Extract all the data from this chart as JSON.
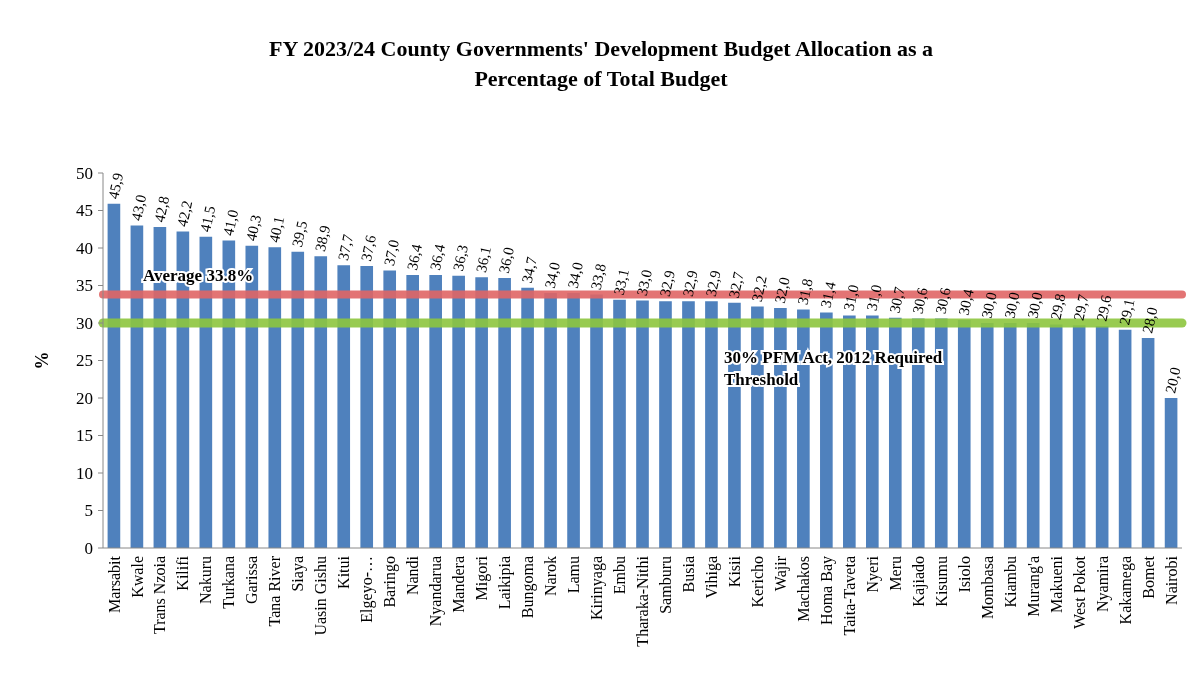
{
  "chart_data": {
    "type": "bar",
    "title": "FY 2023/24 County Governments' Development Budget Allocation as a Percentage of Total Budget",
    "ylabel": "%",
    "categories": [
      "Marsabit",
      "Kwale",
      "Trans Nzoia",
      "Kilifi",
      "Nakuru",
      "Turkana",
      "Garissa",
      "Tana River",
      "Siaya",
      "Uasin Gishu",
      "Kitui",
      "Elgeyo-…",
      "Baringo",
      "Nandi",
      "Nyandarua",
      "Mandera",
      "Migori",
      "Laikipia",
      "Bungoma",
      "Narok",
      "Lamu",
      "Kirinyaga",
      "Embu",
      "Tharaka-Nithi",
      "Samburu",
      "Busia",
      "Vihiga",
      "Kisii",
      "Kericho",
      "Wajir",
      "Machakos",
      "Homa Bay",
      "Taita-Taveta",
      "Nyeri",
      "Meru",
      "Kajiado",
      "Kisumu",
      "Isiolo",
      "Mombasa",
      "Kiambu",
      "Murang'a",
      "Makueni",
      "West Pokot",
      "Nyamira",
      "Kakamega",
      "Bomet",
      "Nairobi"
    ],
    "values": [
      45.9,
      43.0,
      42.8,
      42.2,
      41.5,
      41.0,
      40.3,
      40.1,
      39.5,
      38.9,
      37.7,
      37.6,
      37.0,
      36.4,
      36.4,
      36.3,
      36.1,
      36.0,
      34.7,
      34.0,
      34.0,
      33.8,
      33.1,
      33.0,
      32.9,
      32.9,
      32.9,
      32.7,
      32.2,
      32.0,
      31.8,
      31.4,
      31.0,
      31.0,
      30.7,
      30.6,
      30.6,
      30.4,
      30.0,
      30.0,
      30.0,
      29.8,
      29.7,
      29.6,
      29.1,
      28.0,
      20.0
    ],
    "value_labels": [
      "45,9",
      "43,0",
      "42,8",
      "42,2",
      "41,5",
      "41,0",
      "40,3",
      "40,1",
      "39,5",
      "38,9",
      "37,7",
      "37,6",
      "37,0",
      "36,4",
      "36,4",
      "36,3",
      "36,1",
      "36,0",
      "34,7",
      "34,0",
      "34,0",
      "33,8",
      "33,1",
      "33,0",
      "32,9",
      "32,9",
      "32,9",
      "32,7",
      "32,2",
      "32,0",
      "31,8",
      "31,4",
      "31,0",
      "31,0",
      "30,7",
      "30,6",
      "30,6",
      "30,4",
      "30,0",
      "30,0",
      "30,0",
      "29,8",
      "29,7",
      "29,6",
      "29,1",
      "28,0",
      "20,0"
    ],
    "color": "#4f81bd",
    "ylim": [
      0,
      50
    ],
    "yticks": [
      0,
      5,
      10,
      15,
      20,
      25,
      30,
      35,
      40,
      45,
      50
    ],
    "grid": false,
    "ref_lines": [
      {
        "axis": "y",
        "value": 33.8,
        "label": "Average 33.8%",
        "color": "#e06666"
      },
      {
        "axis": "y",
        "value": 30,
        "label": "30% PFM Act, 2012 Required Threshold",
        "color": "#8dc63f"
      }
    ]
  }
}
